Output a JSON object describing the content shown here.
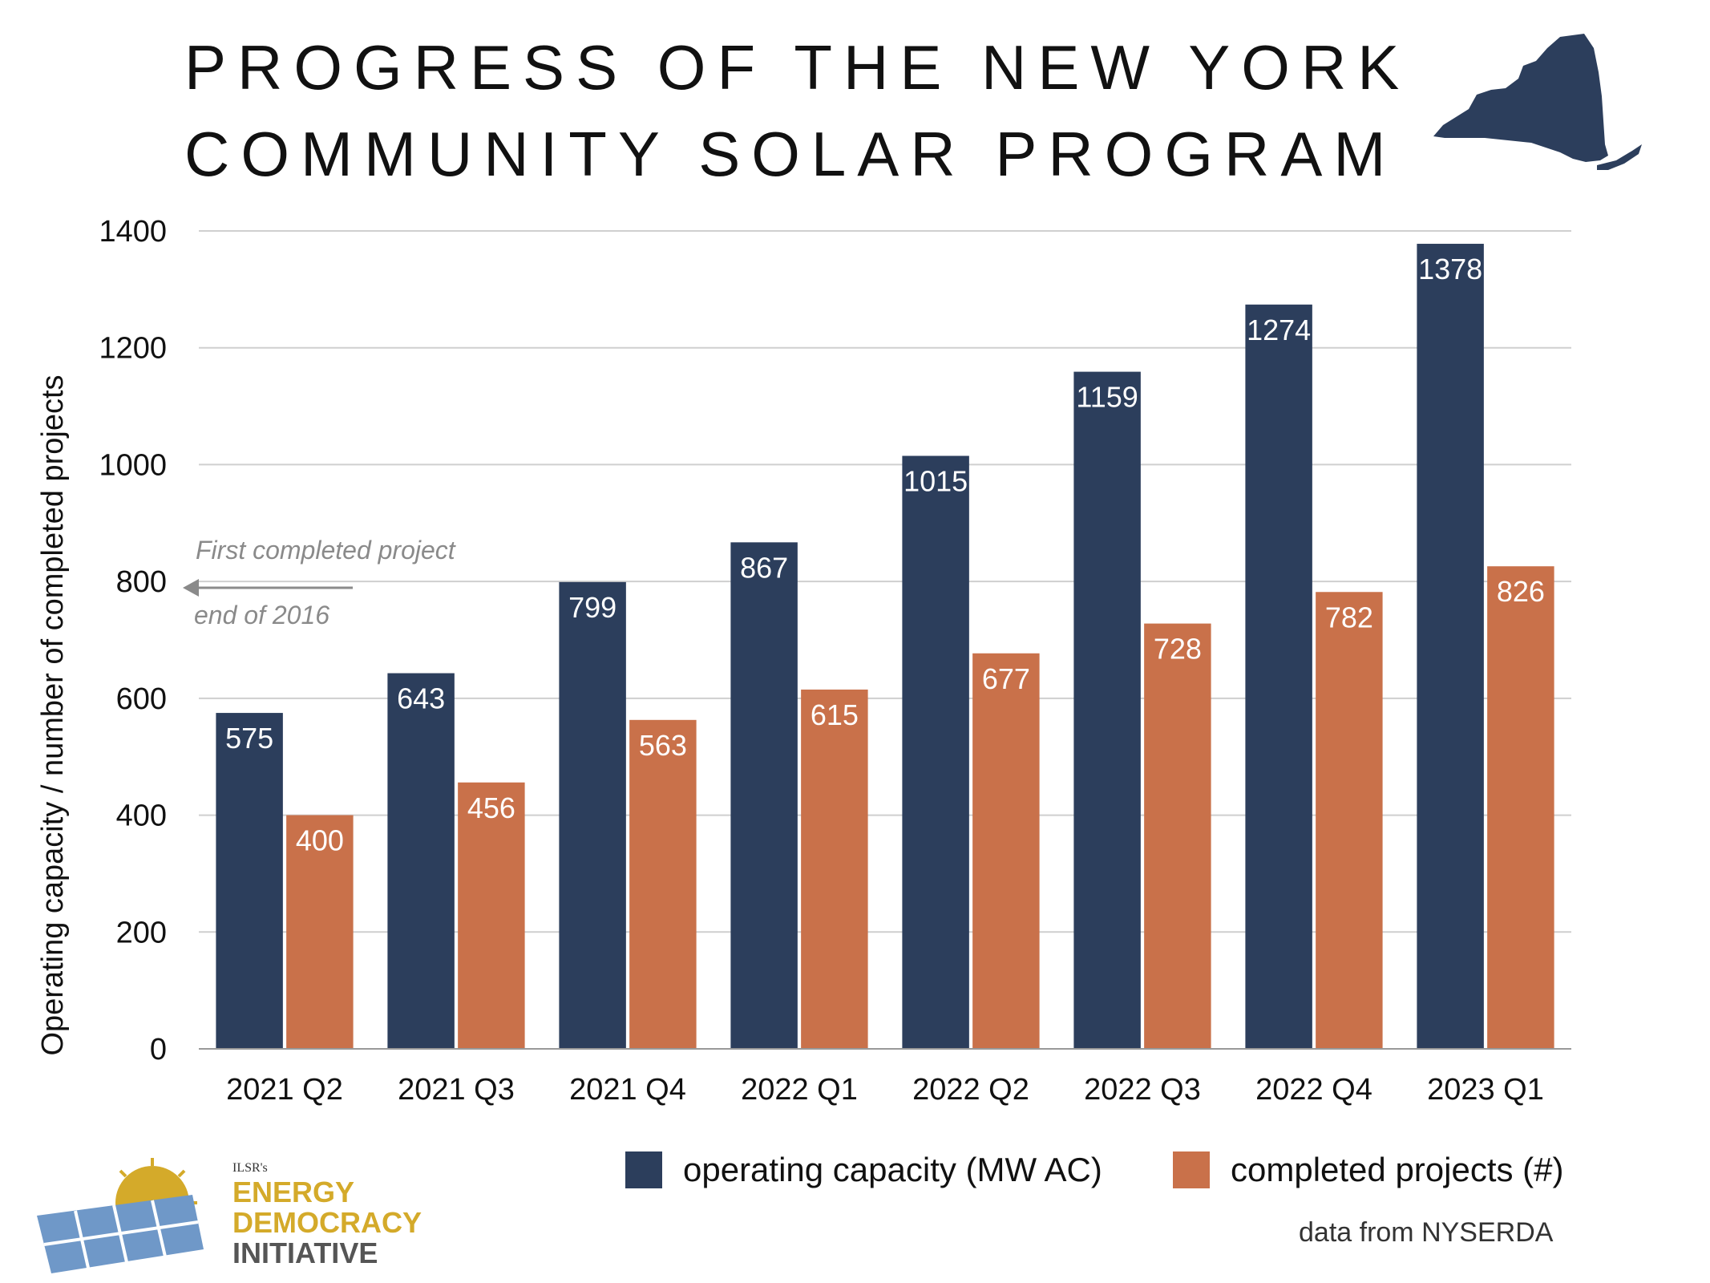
{
  "title": {
    "line1": "PROGRESS OF THE NEW YORK",
    "line2": "COMMUNITY SOLAR PROGRAM"
  },
  "icons": {
    "state_map": "new-york-state-icon",
    "logo_graphic": "solar-panel-sun-icon"
  },
  "colors": {
    "capacity": "#2c3e5c",
    "projects": "#c9714a",
    "grid": "#cfcfcf"
  },
  "chart_data": {
    "type": "bar",
    "ylabel": "Operating capacity / number of completed projects",
    "ylim": [
      0,
      1400
    ],
    "yticks": [
      0,
      200,
      400,
      600,
      800,
      1000,
      1200,
      1400
    ],
    "grid": true,
    "legend_position": "bottom-right",
    "categories": [
      "2021 Q2",
      "2021 Q3",
      "2021 Q4",
      "2022 Q1",
      "2022 Q2",
      "2022 Q3",
      "2022 Q4",
      "2023 Q1"
    ],
    "series": [
      {
        "name": "operating capacity (MW AC)",
        "values": [
          575,
          643,
          799,
          867,
          1015,
          1159,
          1274,
          1378
        ]
      },
      {
        "name": "completed projects (#)",
        "values": [
          400,
          456,
          563,
          615,
          677,
          728,
          782,
          826
        ]
      }
    ],
    "annotation": {
      "line1": "First completed project",
      "line2": "end of 2016"
    }
  },
  "source": "data from NYSERDA",
  "logo": {
    "small": "ILSR's",
    "line1": "ENERGY",
    "line2": "DEMOCRACY",
    "line3": "INITIATIVE"
  }
}
